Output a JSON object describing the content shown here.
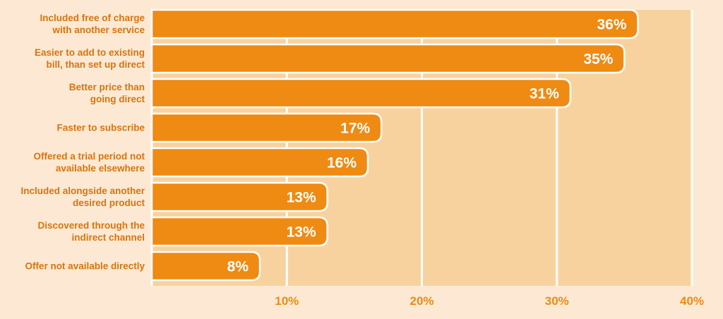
{
  "chart_data": {
    "type": "bar",
    "orientation": "horizontal",
    "categories": [
      [
        "Included free of charge",
        "with another service"
      ],
      [
        "Easier to add to existing",
        "bill, than set up direct"
      ],
      [
        "Better price than",
        "going direct"
      ],
      [
        "Faster to subscribe"
      ],
      [
        "Offered a trial period not",
        "available elsewhere"
      ],
      [
        "Included alongside another",
        "desired product"
      ],
      [
        "Discovered through the",
        "indirect  channel"
      ],
      [
        "Offer not available directly"
      ]
    ],
    "values": [
      36,
      35,
      31,
      17,
      16,
      13,
      13,
      8
    ],
    "value_labels": [
      "36%",
      "35%",
      "31%",
      "17%",
      "16%",
      "13%",
      "13%",
      "8%"
    ],
    "xlim": [
      0,
      40
    ],
    "xticks": [
      10,
      20,
      30,
      40
    ],
    "xtick_labels": [
      "10%",
      "20%",
      "30%",
      "40%"
    ],
    "grid": true,
    "colors": {
      "background": "#fde9d3",
      "plot_area": "#f8d29e",
      "bar": "#ef8a12",
      "bar_border": "#ffffff",
      "grid": "#ffffff",
      "label": "#d9730d",
      "tick": "#ef8a12"
    }
  }
}
